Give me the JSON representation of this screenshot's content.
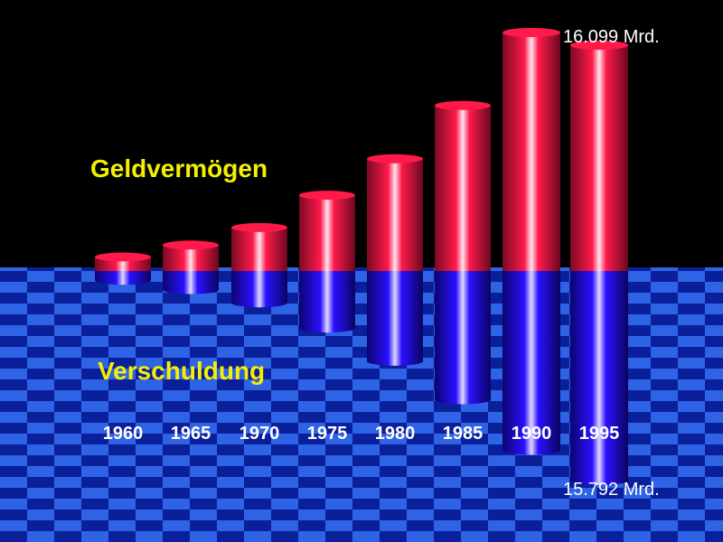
{
  "colors": {
    "positive": "#ff1a4a",
    "negative": "#2a10ff",
    "label_text": "#f4f000",
    "floor_light": "#2f63e6",
    "floor_dark": "#0a1f9a"
  },
  "chart_data": {
    "type": "bar",
    "categories": [
      "1960",
      "1965",
      "1970",
      "1975",
      "1980",
      "1985",
      "1990",
      "1995"
    ],
    "series": [
      {
        "name": "Geldvermögen",
        "values": [
          1000,
          1850,
          3100,
          5400,
          8000,
          11800,
          17000,
          16099
        ]
      },
      {
        "name": "Verschuldung",
        "values": [
          700,
          1400,
          2400,
          4300,
          6800,
          9700,
          13500,
          15792
        ]
      }
    ],
    "annotations": {
      "top_value": "16.099 Mrd.",
      "bottom_value": "15.792 Mrd."
    },
    "legend": "inline"
  }
}
